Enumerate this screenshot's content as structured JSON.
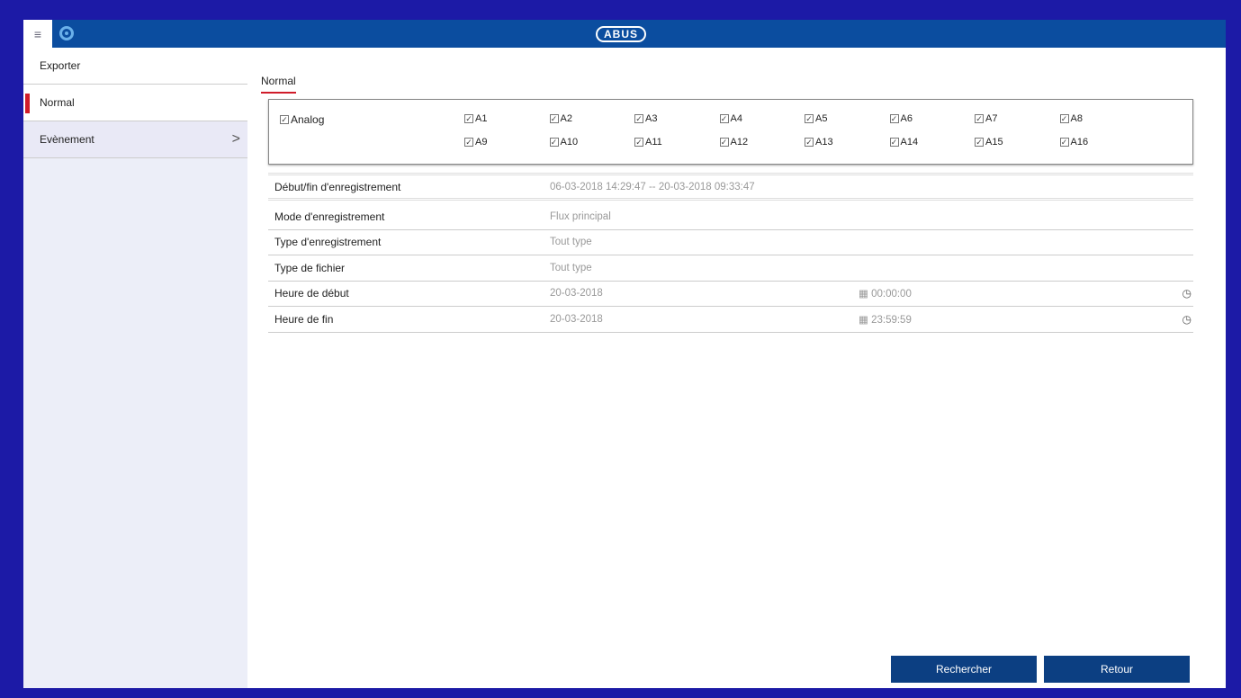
{
  "header": {
    "logo": "ABUS",
    "menu_icon": "hamburger-icon",
    "app_icon": "eye-icon"
  },
  "sidebar": {
    "items": [
      {
        "label": "Exporter"
      },
      {
        "label": "Normal",
        "active": true
      },
      {
        "label": "Evènement",
        "chevron": ">"
      }
    ]
  },
  "tab": "Normal",
  "channels": {
    "group": {
      "label": "Analog",
      "checked": true
    },
    "items": [
      "A1",
      "A2",
      "A3",
      "A4",
      "A5",
      "A6",
      "A7",
      "A8",
      "A9",
      "A10",
      "A11",
      "A12",
      "A13",
      "A14",
      "A15",
      "A16"
    ]
  },
  "fields": [
    {
      "label": "Début/fin d'enregistrement",
      "value": "06-03-2018 14:29:47 -- 20-03-2018 09:33:47"
    },
    {
      "label": "Mode d'enregistrement",
      "value": "Flux principal"
    },
    {
      "label": "Type d'enregistrement",
      "value": "Tout type"
    },
    {
      "label": "Type de fichier",
      "value": "Tout type"
    },
    {
      "label": "Heure de début",
      "value": "20-03-2018",
      "time": "00:00:00"
    },
    {
      "label": "Heure de fin",
      "value": "20-03-2018",
      "time": "23:59:59"
    }
  ],
  "buttons": {
    "search": "Rechercher",
    "back": "Retour"
  },
  "colors": {
    "frame": "#1c1aa6",
    "header": "#0b4d9f",
    "accent": "#d01c2a",
    "button": "#0c3f82"
  }
}
